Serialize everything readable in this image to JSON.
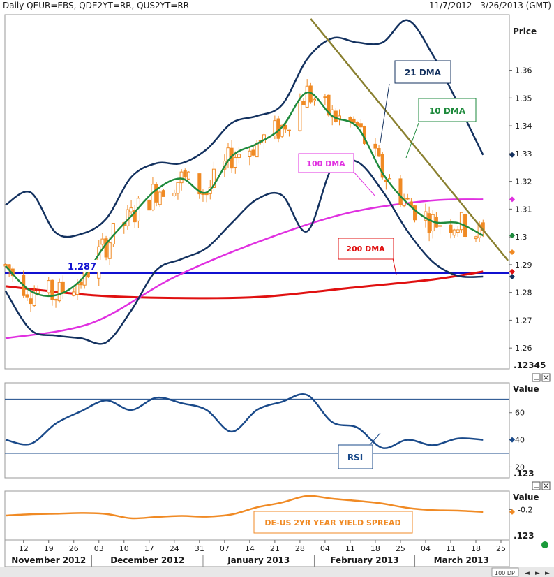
{
  "header": {
    "title": "Daily QEUR=EBS, QDE2YT=RR, QUS2YT=RR",
    "date_range": "11/7/2012 - 3/26/2013 (GMT)"
  },
  "panels": {
    "price": {
      "axis_title": "Price",
      "corner_label": ".12345"
    },
    "rsi": {
      "axis_title": "Value",
      "corner_label": ".123"
    },
    "spread": {
      "axis_title": "Value",
      "corner_label": ".123"
    }
  },
  "x_axis": {
    "day_ticks": [
      "12",
      "19",
      "26",
      "03",
      "10",
      "17",
      "24",
      "31",
      "07",
      "14",
      "21",
      "28",
      "04",
      "11",
      "18",
      "25",
      "04",
      "11",
      "18",
      "25"
    ],
    "months": [
      "November 2012",
      "December 2012",
      "January 2013",
      "February 2013",
      "March 2013"
    ]
  },
  "annotations": {
    "dma21": "21 DMA",
    "dma10": "10 DMA",
    "dma100": "100 DMA",
    "dma200": "200 DMA",
    "level": "1.287",
    "rsi": "RSI",
    "spread": "DE-US 2YR YEAR YIELD SPREAD"
  },
  "footer": {
    "zoom": "100 DP"
  },
  "colors": {
    "candle": "#f08a24",
    "dma10": "#1e8a3c",
    "bollinger": "#13315f",
    "dma100": "#e030e0",
    "dma200": "#e01010",
    "level": "#1010d0",
    "trendline": "#8a8030",
    "rsi": "#1a4a8a",
    "spread": "#f08a24"
  },
  "chart_data": [
    {
      "type": "candlestick",
      "title": "Daily QEUR=EBS",
      "ylabel": "Price",
      "ylim": [
        1.2525,
        1.38
      ],
      "yticks": [
        1.26,
        1.27,
        1.28,
        1.29,
        1.3,
        1.31,
        1.32,
        1.33,
        1.34,
        1.35,
        1.36
      ],
      "x_range": "2012-11-07 to 2013-03-26",
      "horizontal_level": 1.287,
      "last_values": {
        "close": 1.2945,
        "dma10": 1.3005,
        "upper_band": 1.3295,
        "lower_band": 1.2857,
        "dma100": 1.3135,
        "dma200": 1.2875
      },
      "series": [
        {
          "name": "10 DMA",
          "x": [
            "2012-11-07",
            "2012-11-14",
            "2012-11-21",
            "2012-11-28",
            "2012-12-05",
            "2012-12-12",
            "2012-12-19",
            "2012-12-26",
            "2013-01-02",
            "2013-01-09",
            "2013-01-16",
            "2013-01-23",
            "2013-01-30",
            "2013-02-06",
            "2013-02-13",
            "2013-02-20",
            "2013-02-27",
            "2013-03-06",
            "2013-03-13",
            "2013-03-20"
          ],
          "values": [
            1.2895,
            1.2805,
            1.279,
            1.2845,
            1.2975,
            1.3075,
            1.317,
            1.321,
            1.316,
            1.329,
            1.3335,
            1.3395,
            1.352,
            1.3435,
            1.3395,
            1.323,
            1.312,
            1.3055,
            1.305,
            1.3005
          ]
        },
        {
          "name": "21 DMA upper band",
          "x": [
            "2012-11-07",
            "2012-11-14",
            "2012-11-21",
            "2012-11-28",
            "2012-12-05",
            "2012-12-12",
            "2012-12-19",
            "2012-12-26",
            "2013-01-02",
            "2013-01-09",
            "2013-01-16",
            "2013-01-23",
            "2013-01-30",
            "2013-02-06",
            "2013-02-13",
            "2013-02-20",
            "2013-02-27",
            "2013-03-06",
            "2013-03-13",
            "2013-03-20"
          ],
          "values": [
            1.3115,
            1.316,
            1.3015,
            1.301,
            1.3065,
            1.3215,
            1.3265,
            1.3265,
            1.3315,
            1.341,
            1.3435,
            1.3475,
            1.364,
            1.3715,
            1.37,
            1.37,
            1.378,
            1.3655,
            1.348,
            1.3295
          ]
        },
        {
          "name": "21 DMA lower band",
          "x": [
            "2012-11-07",
            "2012-11-14",
            "2012-11-21",
            "2012-11-28",
            "2012-12-05",
            "2012-12-12",
            "2012-12-19",
            "2012-12-26",
            "2013-01-02",
            "2013-01-09",
            "2013-01-16",
            "2013-01-23",
            "2013-01-30",
            "2013-02-06",
            "2013-02-13",
            "2013-02-20",
            "2013-02-27",
            "2013-03-06",
            "2013-03-13",
            "2013-03-20"
          ],
          "values": [
            1.2805,
            1.2665,
            1.2645,
            1.2635,
            1.262,
            1.2735,
            1.288,
            1.292,
            1.296,
            1.305,
            1.3135,
            1.315,
            1.302,
            1.325,
            1.327,
            1.3165,
            1.302,
            1.291,
            1.286,
            1.2857
          ]
        },
        {
          "name": "100 DMA",
          "x": [
            "2012-11-07",
            "2012-12-01",
            "2012-12-24",
            "2013-01-17",
            "2013-02-10",
            "2013-03-05",
            "2013-03-20"
          ],
          "values": [
            1.2635,
            1.269,
            1.2855,
            1.2985,
            1.3085,
            1.313,
            1.3135
          ]
        },
        {
          "name": "200 DMA",
          "x": [
            "2012-11-07",
            "2012-12-01",
            "2012-12-24",
            "2013-01-17",
            "2013-02-10",
            "2013-03-05",
            "2013-03-20"
          ],
          "values": [
            1.2822,
            1.279,
            1.278,
            1.2784,
            1.2815,
            1.2845,
            1.2875
          ]
        }
      ]
    },
    {
      "type": "line",
      "title": "RSI",
      "ylabel": "Value",
      "ylim": [
        12,
        82
      ],
      "yticks": [
        20,
        40,
        60
      ],
      "reference_lines": [
        30,
        70
      ],
      "series": [
        {
          "name": "RSI",
          "x": [
            "2012-11-07",
            "2012-11-14",
            "2012-11-21",
            "2012-11-28",
            "2012-12-05",
            "2012-12-12",
            "2012-12-19",
            "2012-12-26",
            "2013-01-02",
            "2013-01-09",
            "2013-01-16",
            "2013-01-23",
            "2013-01-30",
            "2013-02-06",
            "2013-02-13",
            "2013-02-20",
            "2013-02-27",
            "2013-03-06",
            "2013-03-13",
            "2013-03-20"
          ],
          "values": [
            40,
            37,
            52,
            61,
            69,
            62,
            71,
            67,
            62,
            46,
            62,
            68,
            73,
            53,
            49,
            34,
            40,
            36,
            41,
            40
          ]
        }
      ]
    },
    {
      "type": "line",
      "title": "DE-US 2YR YEAR YIELD SPREAD",
      "ylabel": "Value",
      "ylim": [
        -0.48,
        -0.03
      ],
      "yticks": [
        -0.2
      ],
      "series": [
        {
          "name": "DE-US 2YR YEAR YIELD SPREAD",
          "x": [
            "2012-11-07",
            "2012-11-14",
            "2012-11-21",
            "2012-11-28",
            "2012-12-05",
            "2012-12-12",
            "2012-12-19",
            "2012-12-26",
            "2013-01-02",
            "2013-01-09",
            "2013-01-16",
            "2013-01-23",
            "2013-01-30",
            "2013-02-06",
            "2013-02-13",
            "2013-02-20",
            "2013-02-27",
            "2013-03-06",
            "2013-03-13",
            "2013-03-20"
          ],
          "values": [
            -0.255,
            -0.243,
            -0.238,
            -0.232,
            -0.24,
            -0.28,
            -0.268,
            -0.258,
            -0.265,
            -0.245,
            -0.18,
            -0.135,
            -0.075,
            -0.1,
            -0.12,
            -0.145,
            -0.185,
            -0.205,
            -0.21,
            -0.222
          ]
        }
      ]
    }
  ]
}
